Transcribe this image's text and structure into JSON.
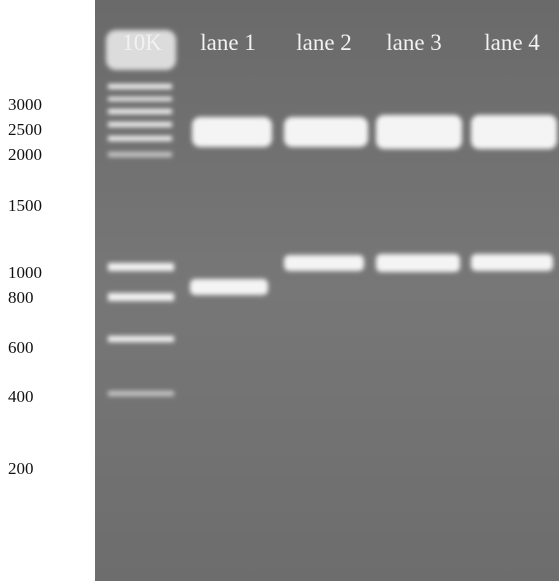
{
  "lanes": [
    "10K",
    "lane 1",
    "lane 2",
    "lane 3",
    "lane 4"
  ],
  "markers": [
    "3000",
    "2500",
    "2000",
    "1500",
    "1000",
    "800",
    "600",
    "400",
    "200"
  ]
}
